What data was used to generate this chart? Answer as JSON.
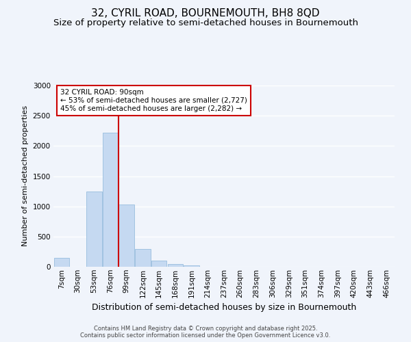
{
  "title": "32, CYRIL ROAD, BOURNEMOUTH, BH8 8QD",
  "subtitle": "Size of property relative to semi-detached houses in Bournemouth",
  "xlabel": "Distribution of semi-detached houses by size in Bournemouth",
  "ylabel": "Number of semi-detached properties",
  "categories": [
    "7sqm",
    "30sqm",
    "53sqm",
    "76sqm",
    "99sqm",
    "122sqm",
    "145sqm",
    "168sqm",
    "191sqm",
    "214sqm",
    "237sqm",
    "260sqm",
    "283sqm",
    "306sqm",
    "329sqm",
    "351sqm",
    "374sqm",
    "397sqm",
    "420sqm",
    "443sqm",
    "466sqm"
  ],
  "values": [
    150,
    0,
    1250,
    2220,
    1030,
    290,
    100,
    50,
    20,
    5,
    0,
    0,
    0,
    0,
    0,
    0,
    0,
    0,
    0,
    0,
    0
  ],
  "bar_color": "#c5d9f1",
  "bar_edge_color": "#8ab4d9",
  "red_line_x": 3.5,
  "highlight_color": "#cc0000",
  "annotation_label": "32 CYRIL ROAD: 90sqm",
  "annotation_line1": "← 53% of semi-detached houses are smaller (2,727)",
  "annotation_line2": "45% of semi-detached houses are larger (2,282) →",
  "footer_line1": "Contains HM Land Registry data © Crown copyright and database right 2025.",
  "footer_line2": "Contains public sector information licensed under the Open Government Licence v3.0.",
  "background_color": "#f0f4fb",
  "plot_background": "#f0f4fb",
  "grid_color": "#ffffff",
  "ylim": [
    0,
    3000
  ],
  "yticks": [
    0,
    500,
    1000,
    1500,
    2000,
    2500,
    3000
  ],
  "title_fontsize": 11,
  "subtitle_fontsize": 9.5,
  "xlabel_fontsize": 9,
  "ylabel_fontsize": 8,
  "tick_fontsize": 7.5,
  "annotation_fontsize": 7.5,
  "footer_fontsize": 6
}
